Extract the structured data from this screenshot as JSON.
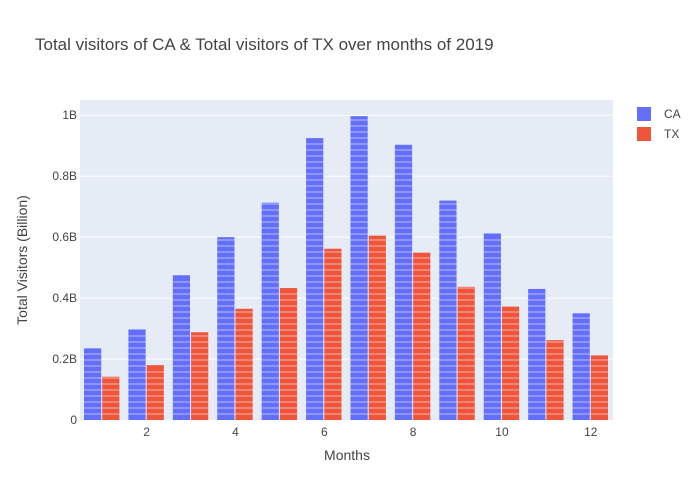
{
  "chart_data": {
    "type": "bar",
    "title": "Total visitors of CA & Total visitors of TX over months of 2019",
    "xlabel": "Months",
    "ylabel": "Total Visitors (Billion)",
    "x": [
      1,
      2,
      3,
      4,
      5,
      6,
      7,
      8,
      9,
      10,
      11,
      12
    ],
    "x_tick_labels": [
      "2",
      "4",
      "6",
      "8",
      "10",
      "12"
    ],
    "x_tick_values": [
      2,
      4,
      6,
      8,
      10,
      12
    ],
    "y_tick_labels": [
      "0",
      "0.2B",
      "0.4B",
      "0.6B",
      "0.8B",
      "1B"
    ],
    "y_tick_values": [
      0,
      0.2,
      0.4,
      0.6,
      0.8,
      1.0
    ],
    "xlim": [
      0.5,
      12.5
    ],
    "ylim": [
      0,
      1.05
    ],
    "grid": true,
    "legend_position": "top-right",
    "series": [
      {
        "name": "CA",
        "color": "#636efa",
        "values": [
          0.235,
          0.297,
          0.475,
          0.6,
          0.713,
          0.925,
          0.997,
          0.903,
          0.72,
          0.612,
          0.43,
          0.35
        ]
      },
      {
        "name": "TX",
        "color": "#ef553b",
        "values": [
          0.142,
          0.18,
          0.288,
          0.365,
          0.433,
          0.562,
          0.605,
          0.549,
          0.437,
          0.372,
          0.262,
          0.212
        ]
      }
    ],
    "colors": {
      "plot_background": "#e5ecf6",
      "gridline": "#ffffff",
      "text": "#444444"
    }
  }
}
